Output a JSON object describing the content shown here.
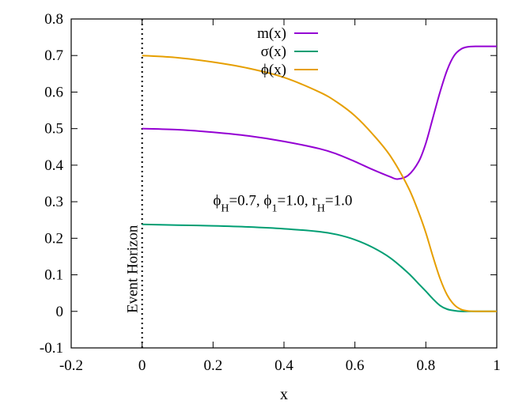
{
  "chart_data": {
    "type": "line",
    "xlabel": "x",
    "ylabel": "",
    "xlim": [
      -0.2,
      1.0
    ],
    "ylim": [
      -0.1,
      0.8
    ],
    "xticks": [
      -0.2,
      0,
      0.2,
      0.4,
      0.6,
      0.8,
      1.0
    ],
    "xtick_labels": [
      "-0.2",
      "0",
      "0.2",
      "0.4",
      "0.6",
      "0.8",
      "1"
    ],
    "yticks": [
      -0.1,
      0,
      0.1,
      0.2,
      0.3,
      0.4,
      0.5,
      0.6,
      0.7,
      0.8
    ],
    "ytick_labels": [
      "-0.1",
      "0",
      "0.1",
      "0.2",
      "0.3",
      "0.4",
      "0.5",
      "0.6",
      "0.7",
      "0.8"
    ],
    "grid": false,
    "legend_placement": "top-center",
    "series": [
      {
        "name": "m(x)",
        "color": "#9400d3",
        "x": [
          0,
          0.1,
          0.2,
          0.3,
          0.4,
          0.5,
          0.55,
          0.6,
          0.65,
          0.7,
          0.72,
          0.75,
          0.78,
          0.8,
          0.82,
          0.84,
          0.86,
          0.88,
          0.9,
          0.92,
          0.94,
          1.0
        ],
        "y": [
          0.5,
          0.497,
          0.49,
          0.48,
          0.465,
          0.445,
          0.43,
          0.41,
          0.388,
          0.368,
          0.362,
          0.372,
          0.41,
          0.46,
          0.53,
          0.6,
          0.66,
          0.7,
          0.718,
          0.724,
          0.725,
          0.725
        ]
      },
      {
        "name": "σ(x)",
        "color": "#009e73",
        "x": [
          0,
          0.1,
          0.2,
          0.3,
          0.4,
          0.5,
          0.55,
          0.6,
          0.65,
          0.7,
          0.75,
          0.78,
          0.8,
          0.82,
          0.84,
          0.86,
          0.88,
          0.9,
          0.92,
          1.0
        ],
        "y": [
          0.238,
          0.236,
          0.234,
          0.231,
          0.226,
          0.218,
          0.21,
          0.196,
          0.175,
          0.146,
          0.105,
          0.075,
          0.055,
          0.034,
          0.016,
          0.006,
          0.002,
          0.0,
          0.0,
          0.0
        ]
      },
      {
        "name": "ϕ(x)",
        "color": "#e69f00",
        "x": [
          0,
          0.1,
          0.2,
          0.3,
          0.4,
          0.5,
          0.55,
          0.6,
          0.65,
          0.7,
          0.75,
          0.78,
          0.8,
          0.82,
          0.84,
          0.86,
          0.88,
          0.9,
          0.92,
          0.94,
          1.0
        ],
        "y": [
          0.7,
          0.694,
          0.682,
          0.665,
          0.64,
          0.6,
          0.572,
          0.535,
          0.485,
          0.425,
          0.34,
          0.27,
          0.215,
          0.15,
          0.09,
          0.045,
          0.018,
          0.005,
          0.001,
          0.0,
          0.0
        ]
      }
    ],
    "vline": {
      "x": 0,
      "label": "Event Horizon",
      "style": "dotted"
    },
    "annotation": {
      "x": 0.2,
      "y": 0.29,
      "parts": [
        {
          "t": "ϕ"
        },
        {
          "t": "H",
          "sub": true
        },
        {
          "t": "=0.7, ϕ"
        },
        {
          "t": "1",
          "sub": true
        },
        {
          "t": "=1.0, r"
        },
        {
          "t": "H",
          "sub": true
        },
        {
          "t": "=1.0"
        }
      ]
    }
  }
}
